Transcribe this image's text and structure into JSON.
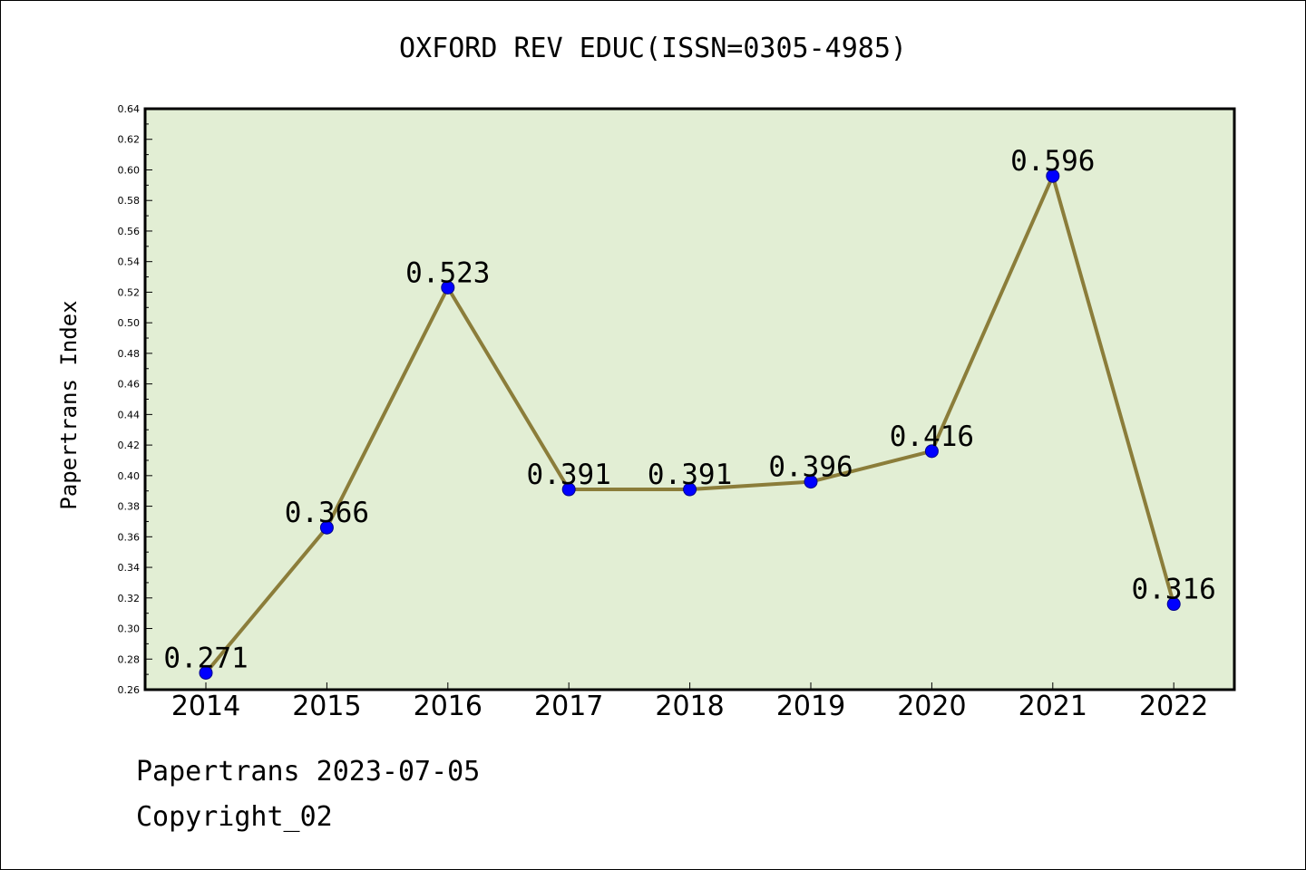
{
  "title": "OXFORD REV EDUC(ISSN=0305-4985)",
  "footer": {
    "line1": "Papertrans 2023-07-05",
    "line2": "Copyright_02"
  },
  "colors": {
    "plot_background": "#e2eed4",
    "line": "#8b7d3a",
    "marker": "#0000ff",
    "axis": "#000000"
  },
  "chart_data": {
    "type": "line",
    "title": "OXFORD REV EDUC(ISSN=0305-4985)",
    "xlabel": "",
    "ylabel": "Papertrans Index",
    "categories": [
      "2014",
      "2015",
      "2016",
      "2017",
      "2018",
      "2019",
      "2020",
      "2021",
      "2022"
    ],
    "series": [
      {
        "values": [
          0.271,
          0.366,
          0.523,
          0.391,
          0.391,
          0.396,
          0.416,
          0.596,
          0.316
        ],
        "labels": [
          "0.271",
          "0.366",
          "0.523",
          "0.391",
          "0.391",
          "0.396",
          "0.416",
          "0.596",
          "0.316"
        ]
      }
    ],
    "ylim": [
      0.26,
      0.64
    ],
    "yticks": [
      "0.26",
      "0.28",
      "0.30",
      "0.32",
      "0.34",
      "0.36",
      "0.38",
      "0.40",
      "0.42",
      "0.44",
      "0.46",
      "0.48",
      "0.50",
      "0.52",
      "0.54",
      "0.56",
      "0.58",
      "0.60",
      "0.62",
      "0.64"
    ],
    "grid": false,
    "legend": "none"
  }
}
